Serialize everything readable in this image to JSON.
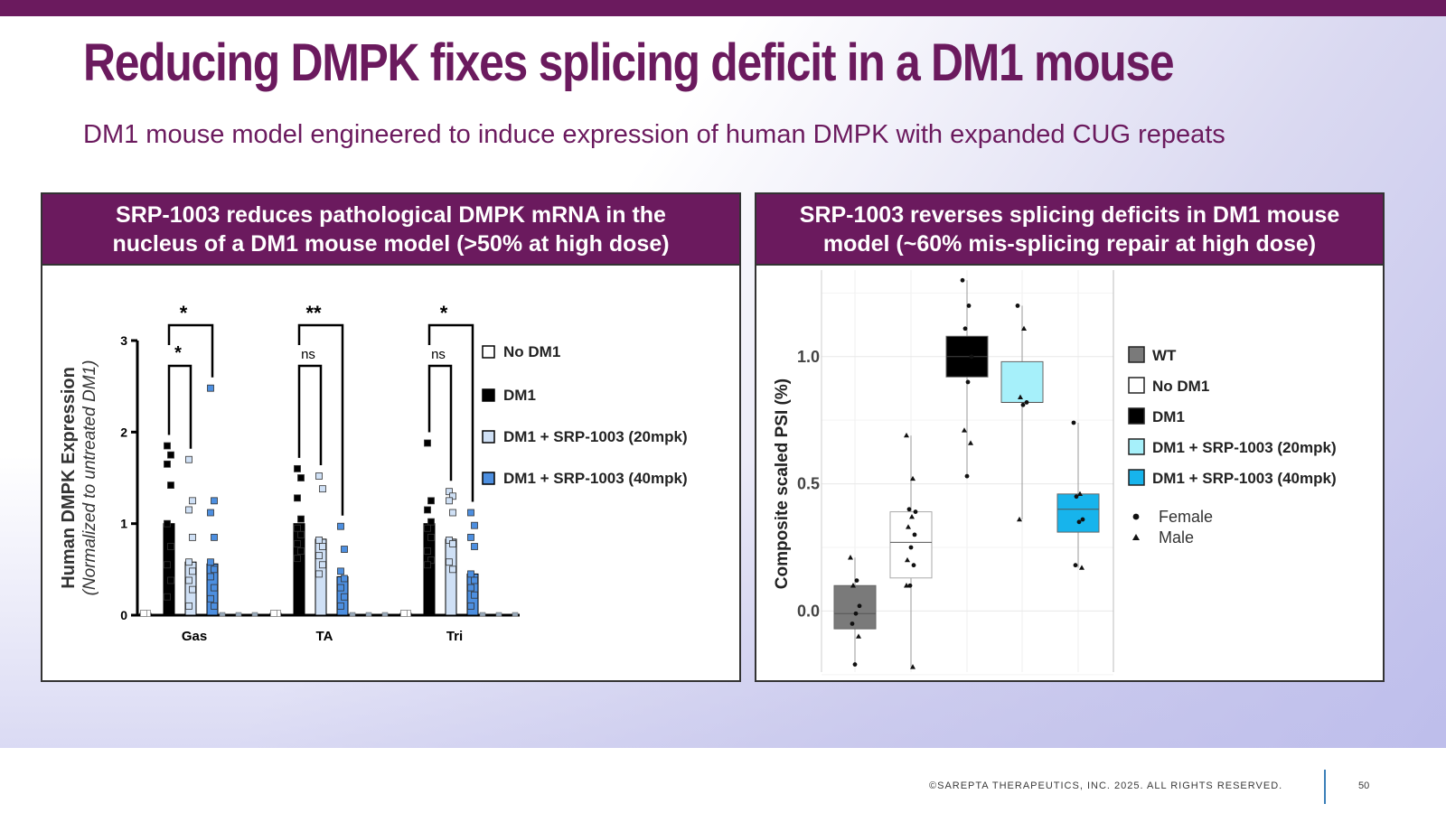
{
  "slide": {
    "title": "Reducing DMPK fixes splicing deficit in a DM1 mouse",
    "subtitle": "DM1 mouse model engineered to induce expression of human DMPK with expanded CUG repeats",
    "footer": "©SAREPTA THERAPEUTICS, INC. 2025.  ALL RIGHTS RESERVED.",
    "page_number": "50",
    "colors": {
      "brand_purple": "#6b1a5e",
      "footer_divider": "#3b7fb8"
    }
  },
  "panels": {
    "left": {
      "header_line1": "SRP-1003 reduces pathological DMPK mRNA in the",
      "header_line2": "nucleus of a DM1 mouse model (>50% at high dose)"
    },
    "right": {
      "header_line1": "SRP-1003 reverses splicing deficits in DM1 mouse",
      "header_line2": "model (~60% mis-splicing repair at high dose)"
    }
  },
  "chart_data": [
    {
      "type": "bar",
      "ylabel": "Human DMPK Expression",
      "ylabel_sub": "(Normalized to untreated DM1)",
      "ylim": [
        0,
        3
      ],
      "yticks": [
        0,
        1,
        2,
        3
      ],
      "categories": [
        "Gas",
        "TA",
        "Tri"
      ],
      "legend_placement": "right",
      "series": [
        {
          "name": "No DM1",
          "color": "#ffffff",
          "values": [
            0.02,
            0.02,
            0.02
          ],
          "points": [
            [
              0.02,
              0.02,
              0.02
            ],
            [
              0.02,
              0.02,
              0.02
            ],
            [
              0.02,
              0.02,
              0.02
            ]
          ]
        },
        {
          "name": "DM1",
          "color": "#000000",
          "values": [
            1.0,
            1.0,
            1.0
          ],
          "points": [
            [
              1.85,
              1.75,
              1.65,
              1.42,
              1.0,
              0.75,
              0.55,
              0.38,
              0.2
            ],
            [
              1.6,
              1.5,
              1.28,
              1.05,
              0.95,
              0.88,
              0.78,
              0.7,
              0.62
            ],
            [
              1.88,
              1.25,
              1.15,
              1.02,
              0.95,
              0.85,
              0.7,
              0.6,
              0.55
            ]
          ]
        },
        {
          "name": "DM1 + SRP-1003 (20mpk)",
          "color": "#cfe0f5",
          "values": [
            0.58,
            0.83,
            0.83
          ],
          "points": [
            [
              1.7,
              1.25,
              1.15,
              0.85,
              0.58,
              0.48,
              0.38,
              0.28,
              0.1
            ],
            [
              1.52,
              1.38,
              0.82,
              0.75,
              0.65,
              0.55,
              0.45
            ],
            [
              1.35,
              1.3,
              1.25,
              1.12,
              0.82,
              0.78,
              0.58,
              0.5
            ]
          ]
        },
        {
          "name": "DM1 + SRP-1003 (40mpk)",
          "color": "#4d8fe0",
          "values": [
            0.56,
            0.42,
            0.45
          ],
          "points": [
            [
              2.48,
              1.25,
              1.12,
              0.85,
              0.58,
              0.5,
              0.42,
              0.3,
              0.18,
              0.1
            ],
            [
              0.97,
              0.72,
              0.48,
              0.4,
              0.3,
              0.2,
              0.1
            ],
            [
              1.12,
              0.98,
              0.85,
              0.75,
              0.45,
              0.38,
              0.3,
              0.22,
              0.1
            ]
          ]
        }
      ],
      "significance": [
        {
          "category": "Gas",
          "upper": "*",
          "lower": "*"
        },
        {
          "category": "TA",
          "upper": "**",
          "lower": "ns"
        },
        {
          "category": "Tri",
          "upper": "*",
          "lower": "ns"
        }
      ]
    },
    {
      "type": "box",
      "ylabel": "Composite scaled PSI (%)",
      "ylim": [
        -0.24,
        1.34
      ],
      "yticks": [
        0.0,
        0.5,
        1.0
      ],
      "grid": true,
      "legend_placement": "right",
      "groups": [
        {
          "name": "WT",
          "color": "#7a7a7a",
          "q1": -0.07,
          "median": -0.01,
          "q3": 0.1,
          "whisker_low": -0.21,
          "whisker_high": 0.21,
          "points": [
            {
              "y": 0.21,
              "sex": "Male"
            },
            {
              "y": 0.12,
              "sex": "Female"
            },
            {
              "y": 0.1,
              "sex": "Male"
            },
            {
              "y": 0.02,
              "sex": "Female"
            },
            {
              "y": -0.01,
              "sex": "Female"
            },
            {
              "y": -0.05,
              "sex": "Female"
            },
            {
              "y": -0.1,
              "sex": "Male"
            },
            {
              "y": -0.21,
              "sex": "Female"
            }
          ]
        },
        {
          "name": "No DM1",
          "color": "#ffffff",
          "q1": 0.13,
          "median": 0.27,
          "q3": 0.39,
          "whisker_low": -0.22,
          "whisker_high": 0.69,
          "points": [
            {
              "y": 0.69,
              "sex": "Male"
            },
            {
              "y": 0.52,
              "sex": "Male"
            },
            {
              "y": 0.4,
              "sex": "Female"
            },
            {
              "y": 0.39,
              "sex": "Female"
            },
            {
              "y": 0.37,
              "sex": "Male"
            },
            {
              "y": 0.33,
              "sex": "Male"
            },
            {
              "y": 0.3,
              "sex": "Female"
            },
            {
              "y": 0.25,
              "sex": "Female"
            },
            {
              "y": 0.2,
              "sex": "Male"
            },
            {
              "y": 0.18,
              "sex": "Female"
            },
            {
              "y": 0.1,
              "sex": "Female"
            },
            {
              "y": 0.1,
              "sex": "Male"
            },
            {
              "y": -0.22,
              "sex": "Male"
            }
          ]
        },
        {
          "name": "DM1",
          "color": "#000000",
          "q1": 0.92,
          "median": 1.0,
          "q3": 1.08,
          "whisker_low": 0.53,
          "whisker_high": 1.3,
          "points": [
            {
              "y": 1.3,
              "sex": "Female"
            },
            {
              "y": 1.2,
              "sex": "Female"
            },
            {
              "y": 1.11,
              "sex": "Female"
            },
            {
              "y": 1.0,
              "sex": "Female"
            },
            {
              "y": 0.9,
              "sex": "Female"
            },
            {
              "y": 0.71,
              "sex": "Male"
            },
            {
              "y": 0.66,
              "sex": "Male"
            },
            {
              "y": 0.53,
              "sex": "Female"
            }
          ]
        },
        {
          "name": "DM1 + SRP-1003 (20mpk)",
          "color": "#a6f0fa",
          "q1": 0.82,
          "median": 0.82,
          "q3": 0.98,
          "whisker_low": 0.36,
          "whisker_high": 1.2,
          "points": [
            {
              "y": 1.2,
              "sex": "Female"
            },
            {
              "y": 1.11,
              "sex": "Male"
            },
            {
              "y": 0.84,
              "sex": "Male"
            },
            {
              "y": 0.82,
              "sex": "Female"
            },
            {
              "y": 0.81,
              "sex": "Female"
            },
            {
              "y": 0.36,
              "sex": "Male"
            }
          ]
        },
        {
          "name": "DM1 + SRP-1003 (40mpk)",
          "color": "#17b4ec",
          "q1": 0.31,
          "median": 0.4,
          "q3": 0.46,
          "whisker_low": 0.17,
          "whisker_high": 0.74,
          "points": [
            {
              "y": 0.74,
              "sex": "Female"
            },
            {
              "y": 0.46,
              "sex": "Male"
            },
            {
              "y": 0.45,
              "sex": "Female"
            },
            {
              "y": 0.36,
              "sex": "Female"
            },
            {
              "y": 0.35,
              "sex": "Female"
            },
            {
              "y": 0.18,
              "sex": "Female"
            },
            {
              "y": 0.17,
              "sex": "Male"
            }
          ]
        }
      ],
      "point_legend": [
        {
          "name": "Female",
          "shape": "circle"
        },
        {
          "name": "Male",
          "shape": "triangle"
        }
      ]
    }
  ]
}
